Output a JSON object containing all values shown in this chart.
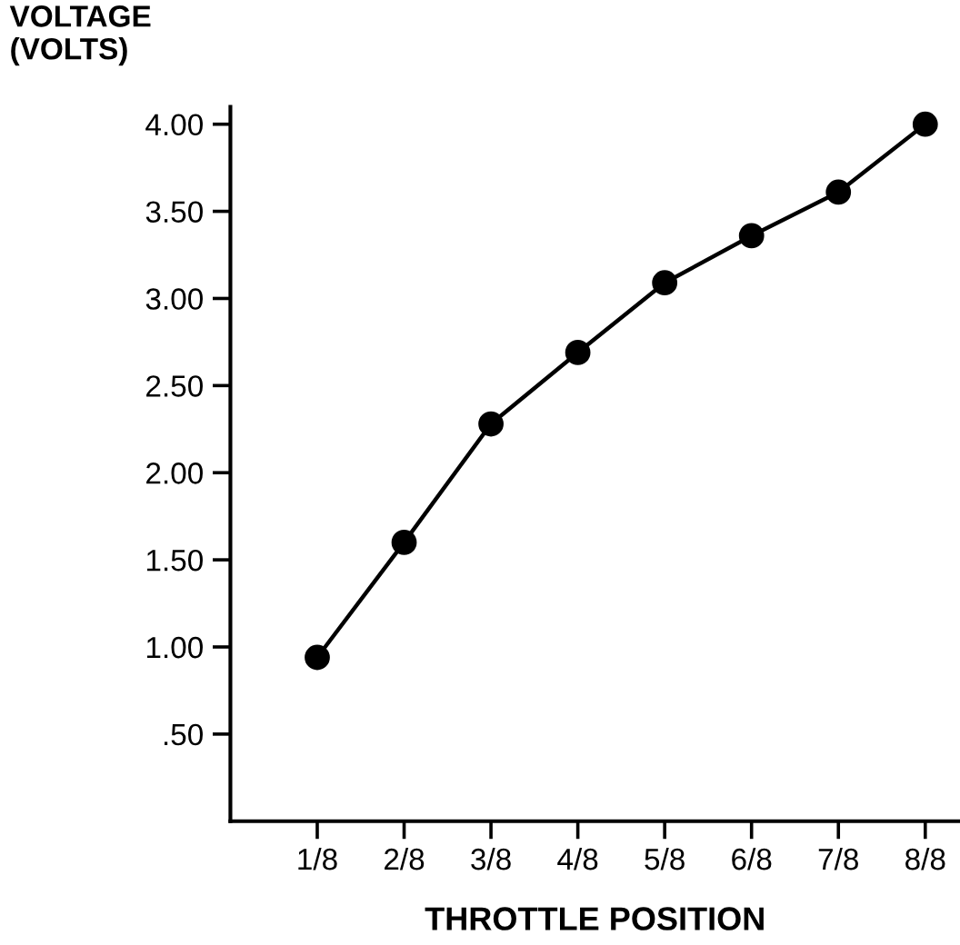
{
  "chart_data": {
    "type": "line",
    "xlabel": "THROTTLE POSITION",
    "ylabel": "VOLTAGE\n(VOLTS)",
    "categories": [
      "1/8",
      "2/8",
      "3/8",
      "4/8",
      "5/8",
      "6/8",
      "7/8",
      "8/8"
    ],
    "values": [
      0.94,
      1.6,
      2.28,
      2.69,
      3.09,
      3.36,
      3.61,
      4.0
    ],
    "color": "#000000",
    "marker": "circle",
    "line_style": "solid",
    "grid": false,
    "legend": false,
    "ylim": [
      0,
      4.1
    ],
    "yticks": [
      {
        "value": 0.5,
        "label": ".50"
      },
      {
        "value": 1,
        "label": "1.00"
      },
      {
        "value": 1.5,
        "label": "1.50"
      },
      {
        "value": 2,
        "label": "2.00"
      },
      {
        "value": 2.5,
        "label": "2.50"
      },
      {
        "value": 3,
        "label": "3.00"
      },
      {
        "value": 3.5,
        "label": "3.50"
      },
      {
        "value": 4,
        "label": "4.00"
      }
    ]
  }
}
